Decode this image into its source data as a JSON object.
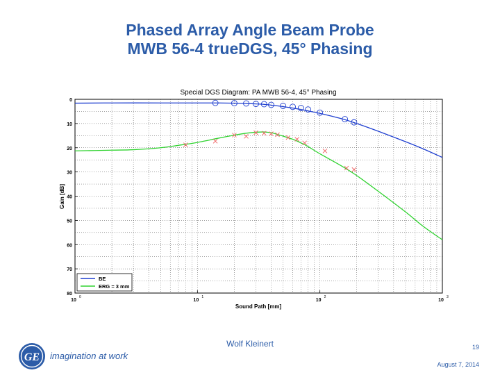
{
  "slide": {
    "title_line1": "Phased Array Angle Beam Probe",
    "title_line2": "MWB 56-4 trueDGS, 45° Phasing",
    "author": "Wolf Kleinert",
    "page_number": "19",
    "date": "August 7, 2014",
    "tagline": "imagination at work",
    "logo_text": "GE"
  },
  "colors": {
    "title": "#2c5ca8",
    "be_series": "#1f3fd0",
    "erg_series": "#2fd22f",
    "markers": "#ee6060"
  },
  "chart_data": {
    "type": "line",
    "title": "Special DGS Diagram: PA MWB 56-4, 45° Phasing",
    "xlabel": "Sound Path [mm]",
    "ylabel": "Gain [dB]",
    "x_scale": "log",
    "xlim": [
      1,
      1000
    ],
    "ylim": [
      0,
      80
    ],
    "y_inverted": true,
    "grid": true,
    "legend_position": "bottom-left",
    "xticks": [
      {
        "value": 1,
        "base": "10",
        "exp": "0"
      },
      {
        "value": 10,
        "base": "10",
        "exp": "1"
      },
      {
        "value": 100,
        "base": "10",
        "exp": "2"
      },
      {
        "value": 1000,
        "base": "10",
        "exp": "3"
      }
    ],
    "yticks": [
      "0",
      "10",
      "20",
      "30",
      "40",
      "50",
      "60",
      "70",
      "80"
    ],
    "series": [
      {
        "name": "BE",
        "color": "#1f3fd0",
        "x": [
          1,
          2,
          5,
          10,
          15,
          20,
          25,
          30,
          35,
          40,
          50,
          60,
          70,
          80,
          100,
          150,
          200,
          300,
          500,
          700,
          1000
        ],
        "y": [
          1.6,
          1.5,
          1.5,
          1.5,
          1.5,
          1.6,
          1.7,
          1.9,
          2.1,
          2.4,
          3.0,
          3.6,
          4.2,
          4.8,
          5.8,
          8.0,
          10.0,
          13.2,
          17.5,
          20.5,
          24.0
        ]
      },
      {
        "name": "ERG = 3 mm",
        "color": "#2fd22f",
        "x": [
          1,
          2,
          3,
          5,
          7,
          10,
          15,
          20,
          25,
          30,
          35,
          40,
          45,
          50,
          60,
          70,
          80,
          100,
          150,
          200,
          300,
          500,
          700,
          1000
        ],
        "y": [
          21.3,
          21.0,
          20.8,
          20.0,
          19.0,
          17.8,
          16.0,
          14.8,
          14.0,
          13.6,
          13.5,
          13.8,
          14.5,
          15.2,
          16.5,
          18.0,
          19.5,
          22.5,
          27.5,
          31.5,
          38.0,
          46.5,
          52.5,
          58.0
        ]
      }
    ],
    "measured_be": {
      "marker": "circle",
      "x": [
        14,
        20,
        25,
        30,
        35,
        40,
        50,
        60,
        70,
        80,
        100,
        160,
        190
      ],
      "y": [
        1.5,
        1.6,
        1.7,
        1.9,
        2.0,
        2.3,
        2.7,
        3.1,
        3.6,
        4.2,
        5.5,
        8.2,
        9.5
      ]
    },
    "measured_erg": {
      "marker": "x",
      "x": [
        8,
        14,
        20,
        25,
        30,
        35,
        40,
        45,
        55,
        65,
        75,
        110,
        165,
        190
      ],
      "y": [
        18.8,
        17.3,
        14.8,
        15.3,
        13.8,
        14.0,
        14.2,
        14.6,
        15.8,
        16.5,
        18.0,
        21.3,
        28.4,
        29.0
      ]
    }
  }
}
